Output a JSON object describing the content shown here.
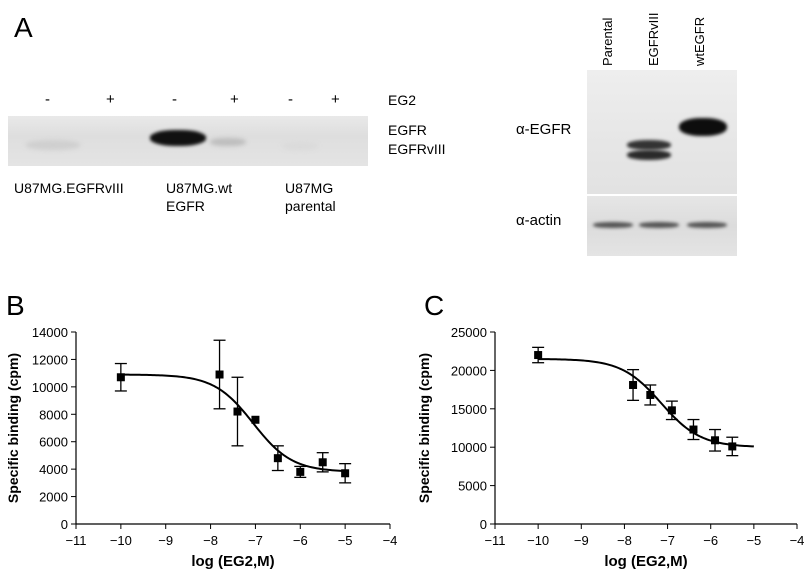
{
  "panel_a": {
    "letter": "A",
    "left_blot": {
      "treatment_signs": [
        "-",
        "+",
        "-",
        "+",
        "-",
        "+"
      ],
      "treatment_label": "EG2",
      "band_labels": [
        "EGFR",
        "EGFRvIII"
      ],
      "lane_groups": [
        {
          "line1": "U87MG.EGFRvIII",
          "line2": ""
        },
        {
          "line1": "U87MG.wt",
          "line2": "EGFR"
        },
        {
          "line1": "U87MG",
          "line2": "parental"
        }
      ]
    },
    "right_blot": {
      "lane_labels": [
        "Parental",
        "EGFRvIII",
        "wtEGFR"
      ],
      "row_labels": [
        "α-EGFR",
        "α-actin"
      ]
    }
  },
  "panel_b": {
    "letter": "B"
  },
  "panel_c": {
    "letter": "C"
  },
  "chart_data": [
    {
      "type": "scatter",
      "panel": "B",
      "xlabel": "log (EG2,M)",
      "ylabel": "Specific binding (cpm)",
      "xlim": [
        -11,
        -4
      ],
      "ylim": [
        0,
        14000
      ],
      "xticks": [
        -11,
        -10,
        -9,
        -8,
        -7,
        -6,
        -5,
        -4
      ],
      "yticks": [
        0,
        2000,
        4000,
        6000,
        8000,
        10000,
        12000,
        14000
      ],
      "points": [
        {
          "x": -10,
          "y": 10700,
          "err": 1000
        },
        {
          "x": -7.8,
          "y": 10900,
          "err": 2500
        },
        {
          "x": -7.4,
          "y": 8200,
          "err": 2500
        },
        {
          "x": -7.0,
          "y": 7600,
          "err": 0
        },
        {
          "x": -6.5,
          "y": 4800,
          "err": 900
        },
        {
          "x": -6.0,
          "y": 3800,
          "err": 400
        },
        {
          "x": -5.5,
          "y": 4500,
          "err": 700
        },
        {
          "x": -5.0,
          "y": 3700,
          "err": 700
        }
      ],
      "fit": {
        "top": 10900,
        "bottom": 3800,
        "log_ic50": -7.05,
        "hill": 1.0
      }
    },
    {
      "type": "scatter",
      "panel": "C",
      "xlabel": "log (EG2,M)",
      "ylabel": "Specific binding (cpm)",
      "xlim": [
        -11,
        -4
      ],
      "ylim": [
        0,
        25000
      ],
      "xticks": [
        -11,
        -10,
        -9,
        -8,
        -7,
        -6,
        -5,
        -4
      ],
      "yticks": [
        0,
        5000,
        10000,
        15000,
        20000,
        25000
      ],
      "points": [
        {
          "x": -10,
          "y": 22000,
          "err": 1000
        },
        {
          "x": -7.8,
          "y": 18100,
          "err": 2000
        },
        {
          "x": -7.4,
          "y": 16800,
          "err": 1300
        },
        {
          "x": -6.9,
          "y": 14800,
          "err": 1200
        },
        {
          "x": -6.4,
          "y": 12300,
          "err": 1300
        },
        {
          "x": -5.9,
          "y": 10900,
          "err": 1400
        },
        {
          "x": -5.5,
          "y": 10100,
          "err": 1200
        }
      ],
      "fit": {
        "top": 21500,
        "bottom": 10000,
        "log_ic50": -7.15,
        "hill": 0.95
      }
    }
  ],
  "colors": {
    "ink": "#000000",
    "band": "#111111",
    "blot_bg": "#e4e4e4"
  }
}
